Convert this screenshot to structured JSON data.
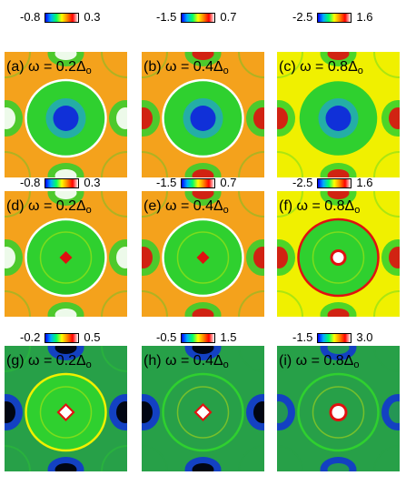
{
  "figure": {
    "panels": [
      {
        "id": "a",
        "letter": "(a)",
        "omega": "ω = 0.2Δ",
        "sub": "o",
        "min": "-0.8",
        "max": "0.3",
        "style": "row1-low"
      },
      {
        "id": "b",
        "letter": "(b)",
        "omega": "ω = 0.4Δ",
        "sub": "o",
        "min": "-1.5",
        "max": "0.7",
        "style": "row1-mid"
      },
      {
        "id": "c",
        "letter": "(c)",
        "omega": "ω = 0.8Δ",
        "sub": "o",
        "min": "-2.5",
        "max": "1.6",
        "style": "row1-high"
      },
      {
        "id": "d",
        "letter": "(d)",
        "omega": "ω = 0.2Δ",
        "sub": "o",
        "min": "-0.8",
        "max": "0.3",
        "style": "row2-low"
      },
      {
        "id": "e",
        "letter": "(e)",
        "omega": "ω = 0.4Δ",
        "sub": "o",
        "min": "-1.5",
        "max": "0.7",
        "style": "row2-mid"
      },
      {
        "id": "f",
        "letter": "(f)",
        "omega": "ω = 0.8Δ",
        "sub": "o",
        "min": "-2.5",
        "max": "1.6",
        "style": "row2-high"
      },
      {
        "id": "g",
        "letter": "(g)",
        "omega": "ω = 0.2Δ",
        "sub": "o",
        "min": "-0.2",
        "max": "0.5",
        "style": "row3-low"
      },
      {
        "id": "h",
        "letter": "(h)",
        "omega": "ω = 0.4Δ",
        "sub": "o",
        "min": "-0.5",
        "max": "1.5",
        "style": "row3-mid"
      },
      {
        "id": "i",
        "letter": "(i)",
        "omega": "ω = 0.8Δ",
        "sub": "o",
        "min": "-1.5",
        "max": "3.0",
        "style": "row3-high"
      }
    ],
    "colors": {
      "orange": "#f4a21c",
      "yellow": "#f0f000",
      "green": "#2fd02f",
      "darkgreen": "#27a048",
      "blue": "#1030d8",
      "red": "#e01010",
      "black": "#000000",
      "white": "#ffffff"
    }
  }
}
